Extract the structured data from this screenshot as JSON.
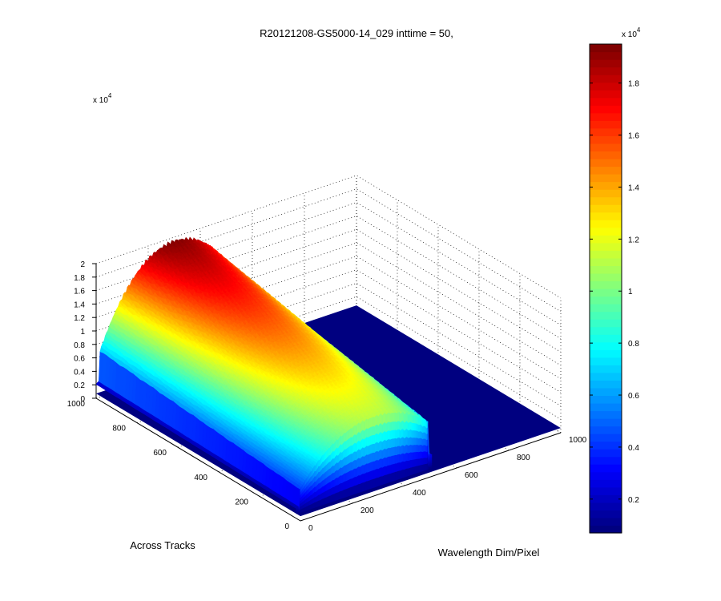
{
  "chart_data": {
    "type": "surface3d",
    "title": "R20121208-GS5000-14_029 inttime = 50,",
    "xlabel": "Wavelength Dim/Pixel",
    "ylabel": "Across Tracks",
    "zlabel": "",
    "x_ticks": [
      0,
      200,
      400,
      600,
      800,
      1000
    ],
    "y_ticks": [
      0,
      200,
      400,
      600,
      800,
      1000
    ],
    "z_ticks": [
      0,
      0.2,
      0.4,
      0.6,
      0.8,
      1,
      1.2,
      1.4,
      1.6,
      1.8,
      2
    ],
    "z_multiplier": "x 10",
    "z_exponent": "4",
    "xlim": [
      0,
      1000
    ],
    "ylim": [
      0,
      1000
    ],
    "zlim": [
      0,
      20000
    ],
    "surface": {
      "description": "flat baseline with a raised spectral band",
      "baseline_value": 700,
      "band_y_range": [
        20,
        1000
      ],
      "band_x_range": [
        0,
        520
      ],
      "peak_value": 19400,
      "peak_at_x": 300
    },
    "colorbar": {
      "ticks": [
        0.2,
        0.4,
        0.6,
        0.8,
        1,
        1.2,
        1.4,
        1.6,
        1.8
      ],
      "multiplier": "x 10",
      "exponent": "4",
      "range": [
        700,
        19500
      ]
    },
    "grid": true
  }
}
